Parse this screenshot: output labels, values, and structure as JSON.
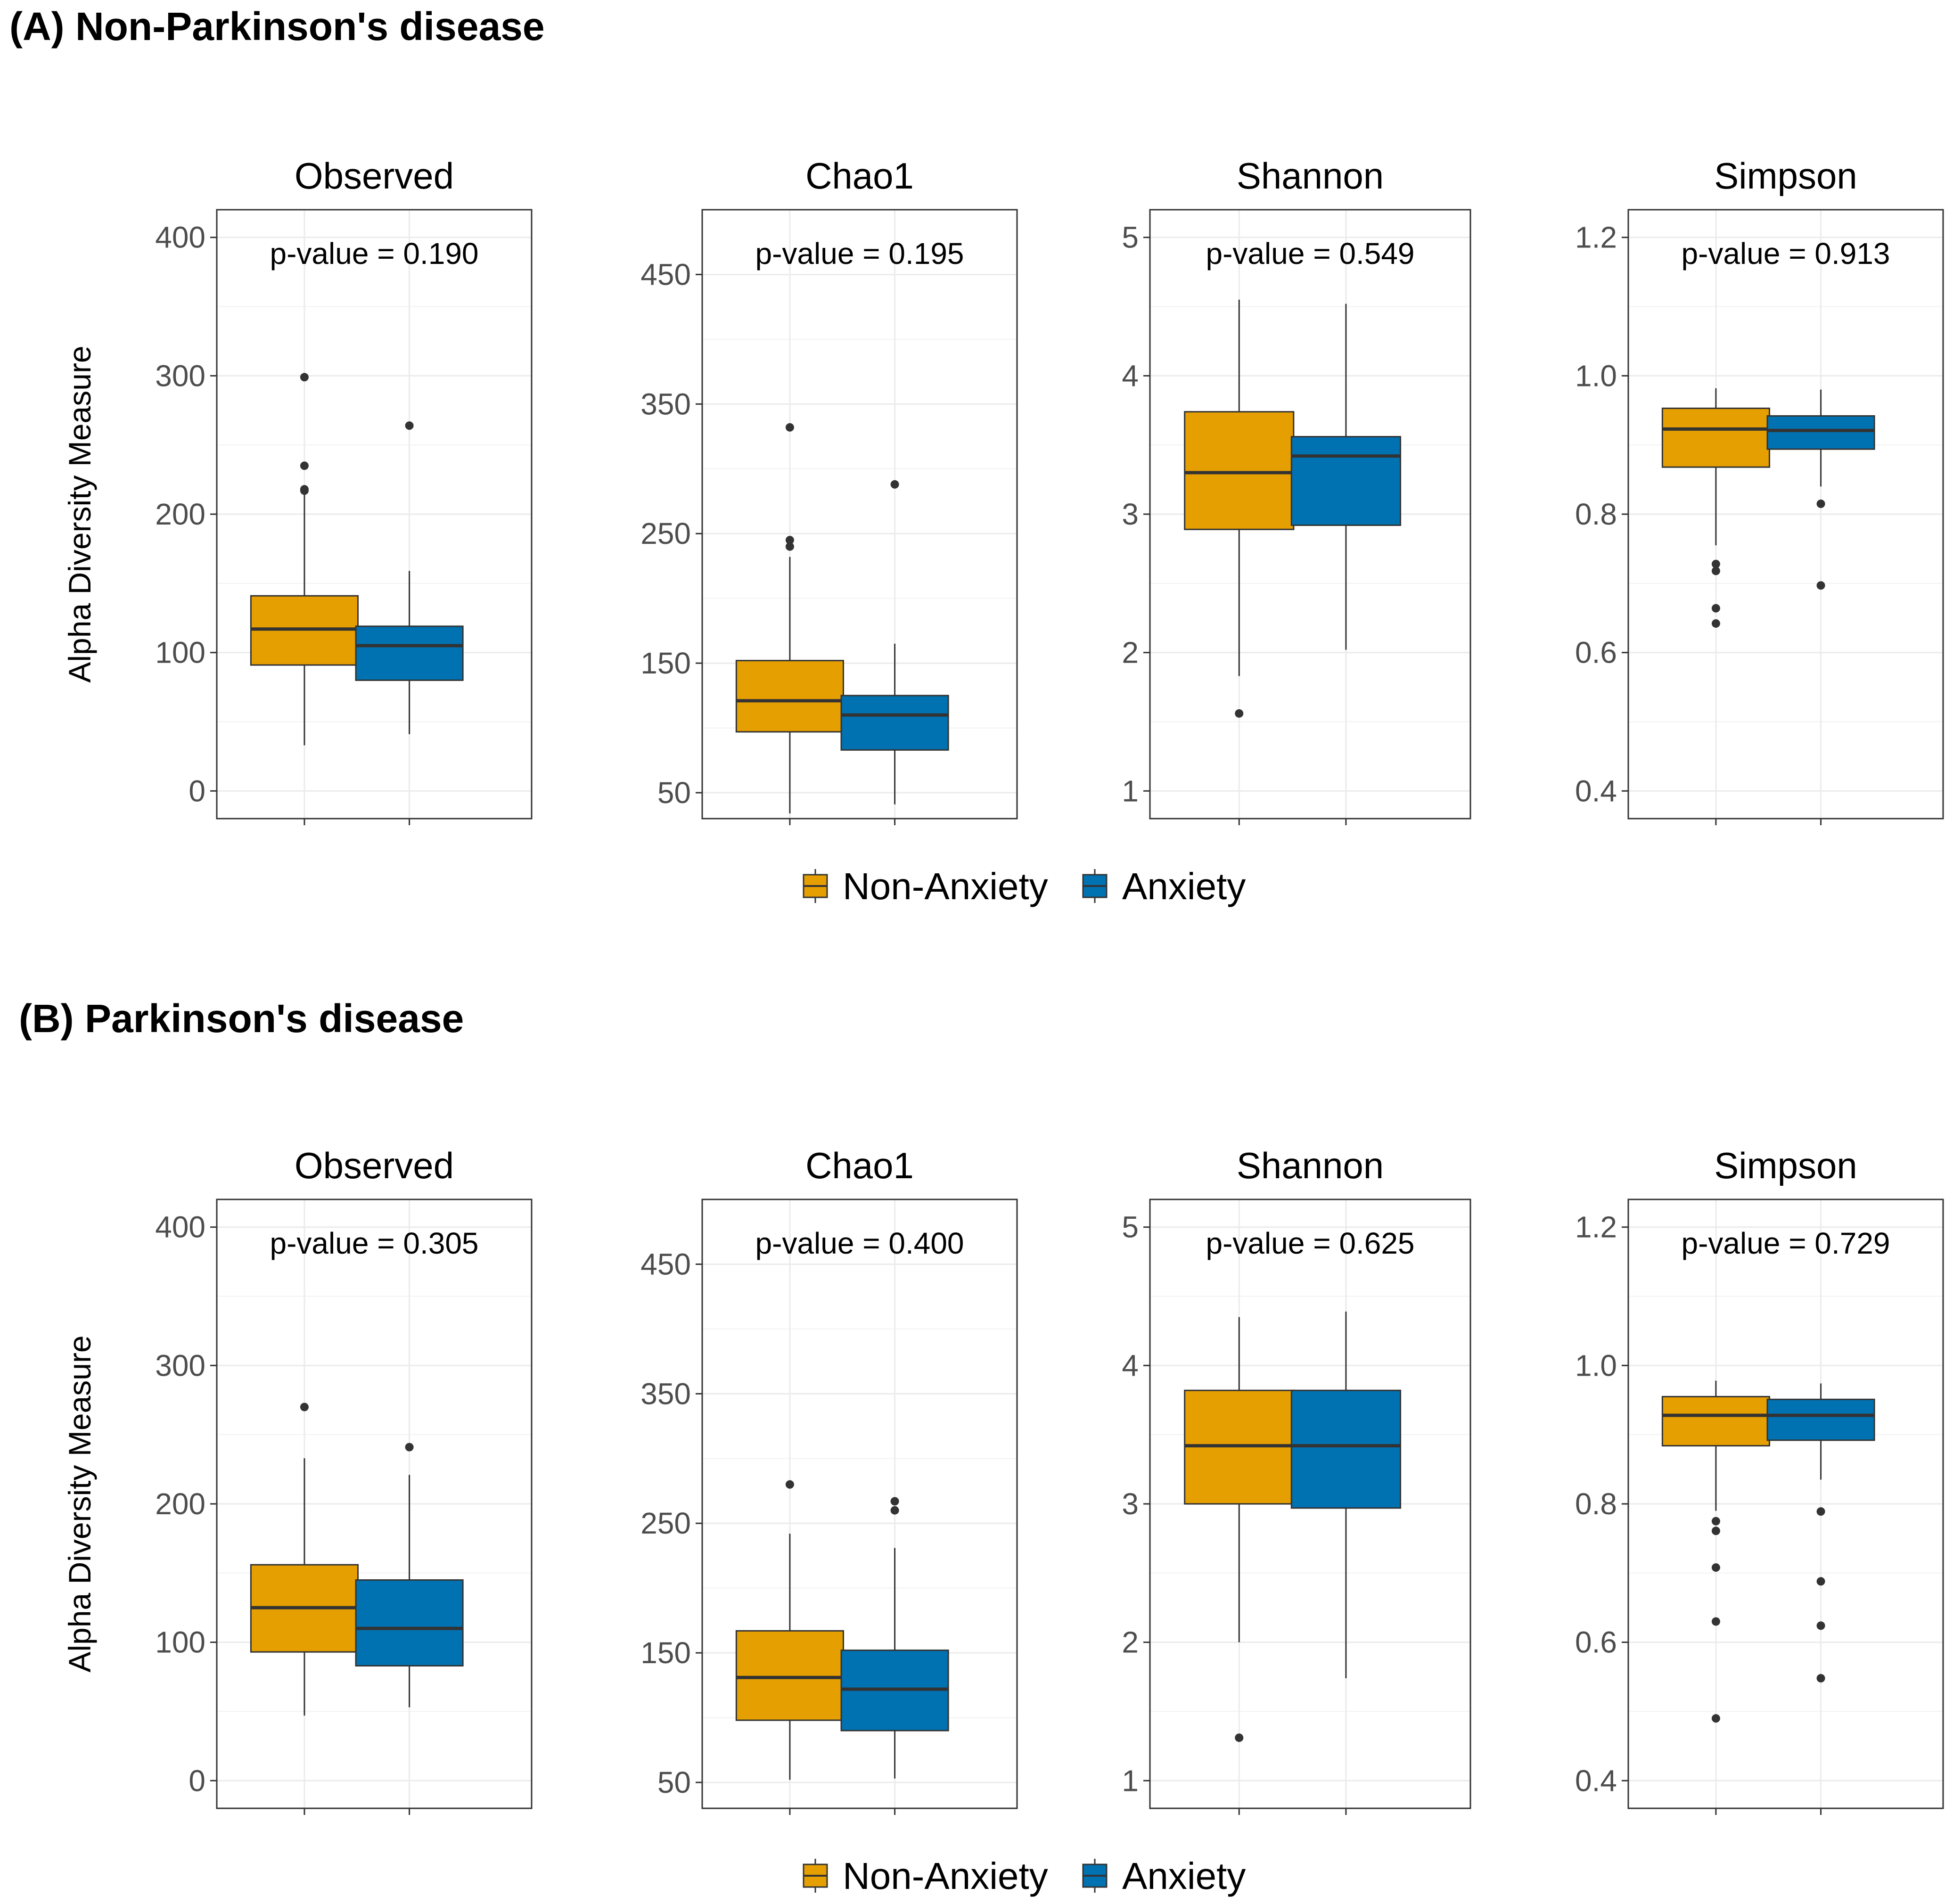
{
  "chart_data": [
    {
      "type": "boxplot",
      "panel_title": "(A) Non-Parkinson's disease",
      "ylabel": "Alpha Diversity Measure",
      "legend": [
        "Non-Anxiety",
        "Anxiety"
      ],
      "groups": [
        "Non-Anxiety",
        "Anxiety"
      ],
      "colors": {
        "Non-Anxiety": "#E69F00",
        "Anxiety": "#0072B2"
      },
      "facets": [
        {
          "metric": "Observed",
          "p_value": "p-value = 0.190",
          "ylim": [
            -20,
            420
          ],
          "ticks": [
            0,
            100,
            200,
            300,
            400
          ],
          "tick_labels": [
            "0",
            "100",
            "200",
            "300",
            "400"
          ],
          "boxes": [
            {
              "group": "Non-Anxiety",
              "min": 33,
              "q1": 91,
              "median": 117,
              "q3": 141,
              "max": 215,
              "outliers": [
                217,
                218,
                235,
                299
              ]
            },
            {
              "group": "Anxiety",
              "min": 41,
              "q1": 80,
              "median": 105,
              "q3": 119,
              "max": 159,
              "outliers": [
                264
              ]
            }
          ]
        },
        {
          "metric": "Chao1",
          "p_value": "p-value = 0.195",
          "ylim": [
            30,
            500
          ],
          "ticks": [
            50,
            150,
            250,
            350,
            450
          ],
          "tick_labels": [
            "50",
            "150",
            "250",
            "350",
            "450"
          ],
          "boxes": [
            {
              "group": "Non-Anxiety",
              "min": 34,
              "q1": 97,
              "median": 121,
              "q3": 152,
              "max": 232,
              "outliers": [
                240,
                245,
                332
              ]
            },
            {
              "group": "Anxiety",
              "min": 41,
              "q1": 83,
              "median": 110,
              "q3": 125,
              "max": 165,
              "outliers": [
                288
              ]
            }
          ]
        },
        {
          "metric": "Shannon",
          "p_value": "p-value = 0.549",
          "ylim": [
            0.8,
            5.2
          ],
          "ticks": [
            1,
            2,
            3,
            4,
            5
          ],
          "tick_labels": [
            "1",
            "2",
            "3",
            "4",
            "5"
          ],
          "boxes": [
            {
              "group": "Non-Anxiety",
              "min": 1.83,
              "q1": 2.89,
              "median": 3.3,
              "q3": 3.74,
              "max": 4.55,
              "outliers": [
                1.56
              ]
            },
            {
              "group": "Anxiety",
              "min": 2.02,
              "q1": 2.92,
              "median": 3.42,
              "q3": 3.56,
              "max": 4.52,
              "outliers": []
            }
          ]
        },
        {
          "metric": "Simpson",
          "p_value": "p-value = 0.913",
          "ylim": [
            0.36,
            1.24
          ],
          "ticks": [
            0.4,
            0.6,
            0.8,
            1.0,
            1.2
          ],
          "tick_labels": [
            "0.4",
            "0.6",
            "0.8",
            "1.0",
            "1.2"
          ],
          "boxes": [
            {
              "group": "Non-Anxiety",
              "min": 0.755,
              "q1": 0.868,
              "median": 0.923,
              "q3": 0.953,
              "max": 0.982,
              "outliers": [
                0.728,
                0.718,
                0.664,
                0.642
              ]
            },
            {
              "group": "Anxiety",
              "min": 0.84,
              "q1": 0.894,
              "median": 0.921,
              "q3": 0.942,
              "max": 0.98,
              "outliers": [
                0.815,
                0.697
              ]
            }
          ]
        }
      ]
    },
    {
      "type": "boxplot",
      "panel_title": "(B) Parkinson's disease",
      "ylabel": "Alpha Diversity Measure",
      "legend": [
        "Non-Anxiety",
        "Anxiety"
      ],
      "groups": [
        "Non-Anxiety",
        "Anxiety"
      ],
      "colors": {
        "Non-Anxiety": "#E69F00",
        "Anxiety": "#0072B2"
      },
      "facets": [
        {
          "metric": "Observed",
          "p_value": "p-value = 0.305",
          "ylim": [
            -20,
            420
          ],
          "ticks": [
            0,
            100,
            200,
            300,
            400
          ],
          "tick_labels": [
            "0",
            "100",
            "200",
            "300",
            "400"
          ],
          "boxes": [
            {
              "group": "Non-Anxiety",
              "min": 47,
              "q1": 93,
              "median": 125,
              "q3": 156,
              "max": 233,
              "outliers": [
                270
              ]
            },
            {
              "group": "Anxiety",
              "min": 53,
              "q1": 83,
              "median": 110,
              "q3": 145,
              "max": 221,
              "outliers": [
                241
              ]
            }
          ]
        },
        {
          "metric": "Chao1",
          "p_value": "p-value = 0.400",
          "ylim": [
            30,
            500
          ],
          "ticks": [
            50,
            150,
            250,
            350,
            450
          ],
          "tick_labels": [
            "50",
            "150",
            "250",
            "350",
            "450"
          ],
          "boxes": [
            {
              "group": "Non-Anxiety",
              "min": 52,
              "q1": 98,
              "median": 131,
              "q3": 167,
              "max": 242,
              "outliers": [
                280
              ]
            },
            {
              "group": "Anxiety",
              "min": 53,
              "q1": 90,
              "median": 122,
              "q3": 152,
              "max": 231,
              "outliers": [
                260,
                267
              ]
            }
          ]
        },
        {
          "metric": "Shannon",
          "p_value": "p-value = 0.625",
          "ylim": [
            0.8,
            5.2
          ],
          "ticks": [
            1,
            2,
            3,
            4,
            5
          ],
          "tick_labels": [
            "1",
            "2",
            "3",
            "4",
            "5"
          ],
          "boxes": [
            {
              "group": "Non-Anxiety",
              "min": 2.0,
              "q1": 3.0,
              "median": 3.42,
              "q3": 3.82,
              "max": 4.35,
              "outliers": [
                1.31
              ]
            },
            {
              "group": "Anxiety",
              "min": 1.74,
              "q1": 2.97,
              "median": 3.42,
              "q3": 3.82,
              "max": 4.39,
              "outliers": []
            }
          ]
        },
        {
          "metric": "Simpson",
          "p_value": "p-value = 0.729",
          "ylim": [
            0.36,
            1.24
          ],
          "ticks": [
            0.4,
            0.6,
            0.8,
            1.0,
            1.2
          ],
          "tick_labels": [
            "0.4",
            "0.6",
            "0.8",
            "1.0",
            "1.2"
          ],
          "boxes": [
            {
              "group": "Non-Anxiety",
              "min": 0.79,
              "q1": 0.884,
              "median": 0.928,
              "q3": 0.955,
              "max": 0.978,
              "outliers": [
                0.775,
                0.761,
                0.708,
                0.63,
                0.49
              ]
            },
            {
              "group": "Anxiety",
              "min": 0.835,
              "q1": 0.892,
              "median": 0.928,
              "q3": 0.951,
              "max": 0.974,
              "outliers": [
                0.789,
                0.688,
                0.624,
                0.548
              ]
            }
          ]
        }
      ]
    }
  ]
}
